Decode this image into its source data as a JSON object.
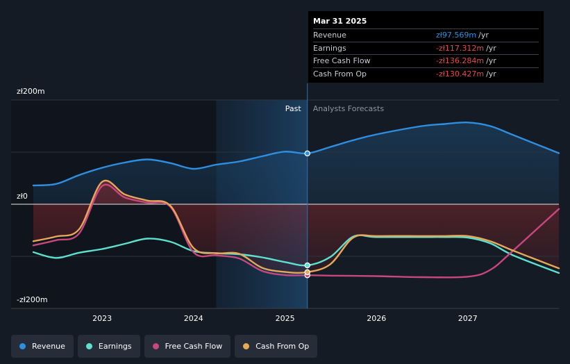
{
  "tooltip": {
    "date": "Mar 31 2025",
    "rows": [
      {
        "label": "Revenue",
        "value": "zł97.569m",
        "unit": "/yr",
        "color": "#2e8fe0"
      },
      {
        "label": "Earnings",
        "value": "-zł117.312m",
        "unit": "/yr",
        "color": "#e84a4f"
      },
      {
        "label": "Free Cash Flow",
        "value": "-zł136.284m",
        "unit": "/yr",
        "color": "#e84a4f"
      },
      {
        "label": "Cash From Op",
        "value": "-zł130.427m",
        "unit": "/yr",
        "color": "#e84a4f"
      }
    ]
  },
  "legend": [
    {
      "label": "Revenue",
      "color": "#2e8fe0"
    },
    {
      "label": "Earnings",
      "color": "#5ee0cf"
    },
    {
      "label": "Free Cash Flow",
      "color": "#c8477f"
    },
    {
      "label": "Cash From Op",
      "color": "#e8a85a"
    }
  ],
  "chart_data": {
    "type": "line",
    "y_unit": "PLN m",
    "y_ticks": [
      {
        "value": 200,
        "label": "zł200m"
      },
      {
        "value": 0,
        "label": "zł0"
      },
      {
        "value": -200,
        "label": "-zł200m"
      }
    ],
    "ylim": [
      -200,
      200
    ],
    "xlim": [
      "2022-04-01",
      "2027-12-31"
    ],
    "x_ticks": [
      {
        "date": "2023-01-01",
        "label": "2023"
      },
      {
        "date": "2024-01-01",
        "label": "2024"
      },
      {
        "date": "2025-01-01",
        "label": "2025"
      },
      {
        "date": "2026-01-01",
        "label": "2026"
      },
      {
        "date": "2027-01-01",
        "label": "2027"
      }
    ],
    "past_label": "Past",
    "forecast_label": "Analysts Forecasts",
    "divider_date": "2025-03-31",
    "shaded_from_date": "2024-04-01",
    "series": [
      {
        "name": "Revenue",
        "color": "#2e8fe0",
        "points": [
          [
            "2022-04-01",
            36
          ],
          [
            "2022-07-01",
            39
          ],
          [
            "2022-10-01",
            56
          ],
          [
            "2023-01-01",
            70
          ],
          [
            "2023-04-01",
            80
          ],
          [
            "2023-07-01",
            86
          ],
          [
            "2023-10-01",
            79
          ],
          [
            "2024-01-01",
            68
          ],
          [
            "2024-04-01",
            76
          ],
          [
            "2024-07-01",
            82
          ],
          [
            "2024-10-01",
            92
          ],
          [
            "2025-01-01",
            101
          ],
          [
            "2025-03-31",
            97.569
          ],
          [
            "2025-07-01",
            110
          ],
          [
            "2025-10-01",
            123
          ],
          [
            "2026-01-01",
            134
          ],
          [
            "2026-07-01",
            150
          ],
          [
            "2026-10-01",
            154
          ],
          [
            "2027-01-01",
            157
          ],
          [
            "2027-04-01",
            150
          ],
          [
            "2027-07-01",
            133
          ],
          [
            "2027-12-31",
            98
          ]
        ]
      },
      {
        "name": "Earnings",
        "color": "#5ee0cf",
        "points": [
          [
            "2022-04-01",
            -92
          ],
          [
            "2022-07-01",
            -103
          ],
          [
            "2022-10-01",
            -93
          ],
          [
            "2023-01-01",
            -86
          ],
          [
            "2023-04-01",
            -76
          ],
          [
            "2023-07-01",
            -66
          ],
          [
            "2023-10-01",
            -72
          ],
          [
            "2024-01-01",
            -90
          ],
          [
            "2024-04-01",
            -94
          ],
          [
            "2024-07-01",
            -96
          ],
          [
            "2024-10-01",
            -102
          ],
          [
            "2025-01-01",
            -111
          ],
          [
            "2025-03-31",
            -117.312
          ],
          [
            "2025-07-01",
            -101
          ],
          [
            "2025-10-01",
            -62
          ],
          [
            "2026-01-01",
            -63
          ],
          [
            "2026-07-01",
            -63
          ],
          [
            "2026-10-01",
            -63
          ],
          [
            "2027-01-01",
            -64
          ],
          [
            "2027-04-01",
            -75
          ],
          [
            "2027-07-01",
            -98
          ],
          [
            "2027-12-31",
            -132
          ]
        ]
      },
      {
        "name": "Free Cash Flow",
        "color": "#c8477f",
        "points": [
          [
            "2022-04-01",
            -79
          ],
          [
            "2022-07-01",
            -69
          ],
          [
            "2022-10-01",
            -56
          ],
          [
            "2023-01-01",
            35
          ],
          [
            "2023-04-01",
            13
          ],
          [
            "2023-07-01",
            3
          ],
          [
            "2023-10-01",
            -5
          ],
          [
            "2024-01-01",
            -92
          ],
          [
            "2024-04-01",
            -98
          ],
          [
            "2024-07-01",
            -104
          ],
          [
            "2024-10-01",
            -128
          ],
          [
            "2025-01-01",
            -136
          ],
          [
            "2025-03-31",
            -136.284
          ],
          [
            "2025-07-01",
            -137
          ],
          [
            "2026-01-01",
            -138
          ],
          [
            "2026-07-01",
            -140
          ],
          [
            "2027-01-01",
            -139
          ],
          [
            "2027-04-01",
            -126
          ],
          [
            "2027-07-01",
            -89
          ],
          [
            "2027-12-31",
            -9
          ]
        ]
      },
      {
        "name": "Cash From Op",
        "color": "#e8a85a",
        "points": [
          [
            "2022-04-01",
            -71
          ],
          [
            "2022-07-01",
            -62
          ],
          [
            "2022-10-01",
            -48
          ],
          [
            "2023-01-01",
            43
          ],
          [
            "2023-04-01",
            19
          ],
          [
            "2023-07-01",
            7
          ],
          [
            "2023-10-01",
            -3
          ],
          [
            "2024-01-01",
            -84
          ],
          [
            "2024-04-01",
            -94
          ],
          [
            "2024-07-01",
            -95
          ],
          [
            "2024-10-01",
            -122
          ],
          [
            "2025-01-01",
            -130
          ],
          [
            "2025-03-31",
            -130.427
          ],
          [
            "2025-07-01",
            -115
          ],
          [
            "2025-10-01",
            -64
          ],
          [
            "2026-01-01",
            -61
          ],
          [
            "2026-07-01",
            -61
          ],
          [
            "2026-10-01",
            -61
          ],
          [
            "2027-01-01",
            -61
          ],
          [
            "2027-04-01",
            -71
          ],
          [
            "2027-07-01",
            -89
          ],
          [
            "2027-12-31",
            -123
          ]
        ]
      }
    ]
  }
}
